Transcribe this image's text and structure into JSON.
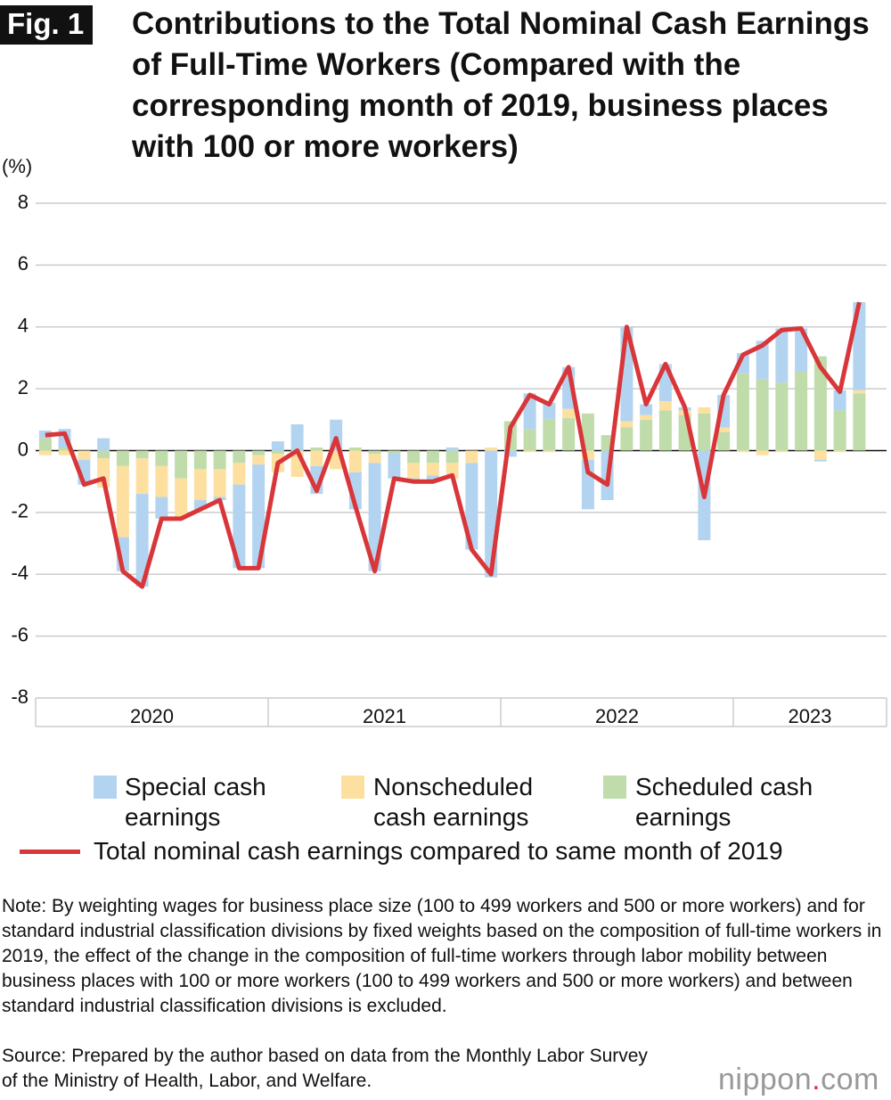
{
  "fig_label": "Fig. 1",
  "chart_data": {
    "type": "bar",
    "title": "Contributions to the Total Nominal Cash Earnings of Full-Time Workers (Compared with the corresponding month of 2019, business places with 100 or more workers)",
    "y_label": "(%)",
    "x_groups": [
      "2020",
      "2021",
      "2022",
      "2023"
    ],
    "categories": [
      null,
      null,
      null,
      null,
      null,
      null,
      null,
      null,
      null,
      null,
      null,
      null,
      null,
      null,
      null,
      null,
      null,
      null,
      null,
      null,
      null,
      null,
      null,
      null,
      null,
      null,
      null,
      null,
      null,
      null,
      null,
      null,
      null,
      null,
      null,
      null,
      null,
      null,
      null,
      null,
      null,
      null,
      null
    ],
    "ylim": [
      -8,
      8
    ],
    "yticks": [
      -8,
      -6,
      -4,
      -2,
      0,
      2,
      4,
      6,
      8
    ],
    "grid": true,
    "series": [
      {
        "name": "Special cash earnings",
        "color": "#b3d4f0",
        "type": "bar",
        "values": [
          0.25,
          0.6,
          -0.8,
          0.4,
          -1.1,
          -3.0,
          -0.7,
          0,
          -0.3,
          -0.1,
          -2.7,
          -3.35,
          0.3,
          0.85,
          -0.9,
          1.0,
          -1.2,
          -3.5,
          -0.8,
          -0.1,
          -0.2,
          0.1,
          -2.8,
          -4.1,
          -0.2,
          1.15,
          0.55,
          1.35,
          -1.6,
          -1.6,
          3.05,
          0.35,
          1.2,
          0.1,
          -2.9,
          1.05,
          0.65,
          1.25,
          1.75,
          1.4,
          -0.05,
          0.65,
          2.85
        ]
      },
      {
        "name": "Nonscheduled cash earnings",
        "color": "#fde0a0",
        "type": "bar",
        "values": [
          -0.15,
          -0.15,
          -0.3,
          -0.95,
          -2.3,
          -1.15,
          -1.0,
          -1.3,
          -1.0,
          -0.9,
          -0.7,
          -0.3,
          -0.6,
          -0.85,
          -0.5,
          -0.6,
          -0.7,
          -0.3,
          0,
          -0.5,
          -0.4,
          -0.5,
          -0.4,
          0.1,
          0,
          -0.05,
          -0.05,
          0.3,
          -0.3,
          0,
          0.2,
          0.15,
          0.3,
          0.15,
          0.2,
          0.15,
          -0.05,
          -0.15,
          -0.05,
          0,
          -0.3,
          -0.05,
          0.1
        ]
      },
      {
        "name": "Scheduled cash earnings",
        "color": "#bfdcaa",
        "type": "bar",
        "values": [
          0.4,
          0.1,
          0,
          -0.25,
          -0.5,
          -0.25,
          -0.5,
          -0.9,
          -0.6,
          -0.6,
          -0.4,
          -0.15,
          -0.1,
          0,
          0.1,
          0,
          0.1,
          -0.1,
          -0.1,
          -0.4,
          -0.4,
          -0.4,
          0,
          0,
          0.95,
          0.7,
          1.0,
          1.05,
          1.2,
          0.5,
          0.75,
          1.0,
          1.3,
          1.15,
          1.2,
          0.6,
          2.5,
          2.3,
          2.2,
          2.55,
          3.05,
          1.3,
          1.85
        ]
      },
      {
        "name": "Total nominal cash earnings compared to same month of 2019",
        "color": "#d9363a",
        "type": "line",
        "values": [
          0.5,
          0.55,
          -1.1,
          -0.9,
          -3.9,
          -4.4,
          -2.2,
          -2.2,
          -1.9,
          -1.6,
          -3.8,
          -3.8,
          -0.4,
          0.0,
          -1.3,
          0.4,
          -1.8,
          -3.9,
          -0.9,
          -1.0,
          -1.0,
          -0.8,
          -3.2,
          -4.0,
          0.75,
          1.8,
          1.5,
          2.7,
          -0.7,
          -1.1,
          4.0,
          1.5,
          2.8,
          1.4,
          -1.5,
          1.8,
          3.1,
          3.4,
          3.9,
          3.95,
          2.7,
          1.9,
          4.8
        ]
      }
    ]
  },
  "note": "Note: By weighting wages for business place size (100 to 499 workers and 500 or more workers) and for standard industrial classification divisions by fixed weights based on the composition of full-time workers in 2019, the effect of the change in the composition of full-time workers through labor mobility between business places with 100 or more workers (100 to 499 workers and 500 or more workers) and between standard industrial classification divisions is excluded.",
  "source": "Source: Prepared by the author based on data from the Monthly Labor Survey of the Ministry of Health, Labor, and Welfare.",
  "logo": {
    "name": "nippon",
    "dot": ".",
    "domain": "com"
  }
}
